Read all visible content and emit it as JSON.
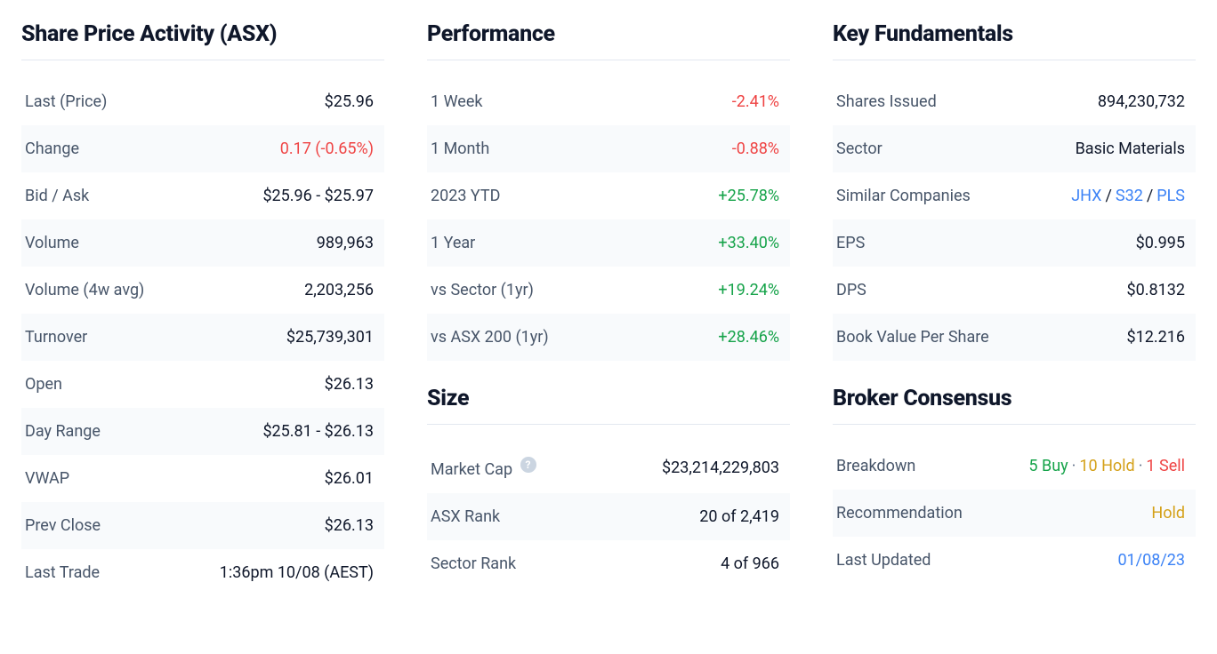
{
  "colors": {
    "text": "#0f172a",
    "muted": "#475569",
    "negative": "#ef4444",
    "positive": "#16a34a",
    "hold": "#d4a017",
    "link": "#3b82f6",
    "row_alt_bg": "#f8fafc",
    "border": "#e2e8f0",
    "help_bg": "#cbd5e1"
  },
  "share_price": {
    "title": "Share Price Activity (ASX)",
    "rows": [
      {
        "label": "Last (Price)",
        "value": "$25.96"
      },
      {
        "label": "Change",
        "value": "0.17 (-0.65%)",
        "cls": "neg"
      },
      {
        "label": "Bid / Ask",
        "value": "$25.96 - $25.97"
      },
      {
        "label": "Volume",
        "value": "989,963"
      },
      {
        "label": "Volume (4w avg)",
        "value": "2,203,256"
      },
      {
        "label": "Turnover",
        "value": "$25,739,301"
      },
      {
        "label": "Open",
        "value": "$26.13"
      },
      {
        "label": "Day Range",
        "value": "$25.81 - $26.13"
      },
      {
        "label": "VWAP",
        "value": "$26.01"
      },
      {
        "label": "Prev Close",
        "value": "$26.13"
      },
      {
        "label": "Last Trade",
        "value": "1:36pm 10/08 (AEST)"
      }
    ]
  },
  "performance": {
    "title": "Performance",
    "rows": [
      {
        "label": "1 Week",
        "value": "-2.41%",
        "cls": "neg"
      },
      {
        "label": "1 Month",
        "value": "-0.88%",
        "cls": "neg"
      },
      {
        "label": "2023 YTD",
        "value": "+25.78%",
        "cls": "pos"
      },
      {
        "label": "1 Year",
        "value": "+33.40%",
        "cls": "pos"
      },
      {
        "label": "vs Sector (1yr)",
        "value": "+19.24%",
        "cls": "pos"
      },
      {
        "label": "vs ASX 200 (1yr)",
        "value": "+28.46%",
        "cls": "pos"
      }
    ]
  },
  "size": {
    "title": "Size",
    "market_cap_label": "Market Cap",
    "market_cap_value": "$23,214,229,803",
    "asx_rank_label": "ASX Rank",
    "asx_rank_value": "20 of 2,419",
    "sector_rank_label": "Sector Rank",
    "sector_rank_value": "4 of 966"
  },
  "fundamentals": {
    "title": "Key Fundamentals",
    "shares_issued_label": "Shares Issued",
    "shares_issued_value": "894,230,732",
    "sector_label": "Sector",
    "sector_value": "Basic Materials",
    "similar_label": "Similar Companies",
    "similar_tickers": [
      "JHX",
      "S32",
      "PLS"
    ],
    "eps_label": "EPS",
    "eps_value": "$0.995",
    "dps_label": "DPS",
    "dps_value": "$0.8132",
    "bvps_label": "Book Value Per Share",
    "bvps_value": "$12.216"
  },
  "broker": {
    "title": "Broker Consensus",
    "breakdown_label": "Breakdown",
    "buy_text": "5 Buy",
    "hold_text": "10 Hold",
    "sell_text": "1 Sell",
    "recommendation_label": "Recommendation",
    "recommendation_value": "Hold",
    "last_updated_label": "Last Updated",
    "last_updated_value": "01/08/23"
  }
}
